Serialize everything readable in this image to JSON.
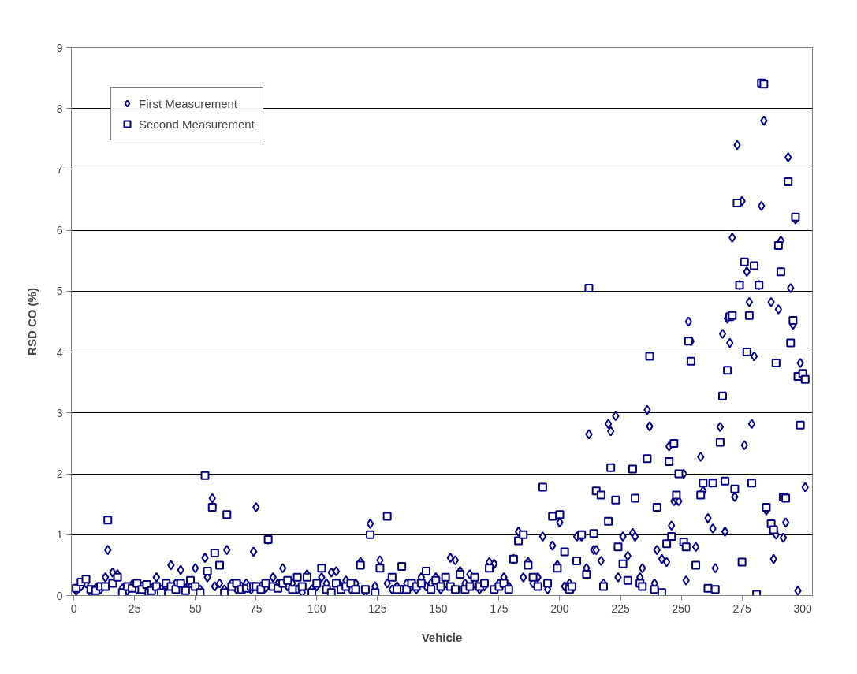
{
  "chart_data": {
    "type": "scatter",
    "xlabel": "Vehicle",
    "ylabel": "RSD CO (%)",
    "x": [
      1,
      3,
      5,
      7,
      9,
      11,
      13,
      14,
      16,
      18,
      20,
      22,
      24,
      26,
      28,
      30,
      32,
      34,
      36,
      38,
      40,
      42,
      44,
      46,
      48,
      50,
      52,
      54,
      55,
      57,
      58,
      60,
      62,
      63,
      65,
      67,
      69,
      71,
      73,
      74,
      75,
      77,
      79,
      80,
      82,
      84,
      86,
      88,
      90,
      92,
      94,
      96,
      98,
      100,
      102,
      104,
      106,
      108,
      110,
      112,
      114,
      116,
      118,
      120,
      122,
      124,
      126,
      129,
      131,
      133,
      135,
      137,
      139,
      141,
      143,
      145,
      147,
      149,
      151,
      153,
      155,
      157,
      159,
      161,
      163,
      165,
      167,
      169,
      171,
      173,
      175,
      177,
      179,
      181,
      183,
      185,
      187,
      189,
      191,
      193,
      195,
      197,
      199,
      200,
      202,
      204,
      205,
      207,
      209,
      211,
      212,
      214,
      215,
      217,
      218,
      220,
      221,
      223,
      224,
      226,
      228,
      230,
      231,
      233,
      234,
      236,
      237,
      239,
      240,
      242,
      244,
      245,
      246,
      247,
      248,
      249,
      251,
      252,
      253,
      254,
      256,
      258,
      259,
      261,
      263,
      264,
      266,
      267,
      268,
      269,
      270,
      271,
      272,
      273,
      274,
      275,
      276,
      277,
      278,
      279,
      280,
      281,
      282,
      283,
      284,
      285,
      287,
      288,
      289,
      290,
      291,
      292,
      293,
      294,
      295,
      296,
      297,
      298,
      299,
      300,
      301
    ],
    "series": [
      {
        "name": "First Measurement",
        "color": "#000080",
        "marker": "diamond",
        "values": [
          0.08,
          0.15,
          0.2,
          0.05,
          0.12,
          0.1,
          0.3,
          0.75,
          0.38,
          0.35,
          0.12,
          0.08,
          0.18,
          0.1,
          0.15,
          0.05,
          0.12,
          0.3,
          0.1,
          0.15,
          0.5,
          0.2,
          0.42,
          0.12,
          0.2,
          0.45,
          0.1,
          0.62,
          0.3,
          1.6,
          0.15,
          0.2,
          0.1,
          0.75,
          0.2,
          0.1,
          0.15,
          0.2,
          0.1,
          0.72,
          1.45,
          0.15,
          0.12,
          0.92,
          0.3,
          0.2,
          0.45,
          0.15,
          0.2,
          0.1,
          0.05,
          0.35,
          0.1,
          0.15,
          0.3,
          0.2,
          0.38,
          0.4,
          0.15,
          0.25,
          0.1,
          0.2,
          0.55,
          0.05,
          1.18,
          0.15,
          0.58,
          0.2,
          0.1,
          0.15,
          0.1,
          0.2,
          0.15,
          0.1,
          0.3,
          0.15,
          0.2,
          0.3,
          0.1,
          0.2,
          0.62,
          0.58,
          0.4,
          0.2,
          0.35,
          0.2,
          0.1,
          0.15,
          0.55,
          0.52,
          0.2,
          0.3,
          0.15,
          0.6,
          1.05,
          0.3,
          0.55,
          0.2,
          0.3,
          0.97,
          0.1,
          0.82,
          0.5,
          1.2,
          0.15,
          0.2,
          0.1,
          0.97,
          0.97,
          0.45,
          2.65,
          0.75,
          0.75,
          0.57,
          0.2,
          2.82,
          2.7,
          2.95,
          0.3,
          0.97,
          0.65,
          1.03,
          0.97,
          0.3,
          0.45,
          3.05,
          2.78,
          0.2,
          0.75,
          0.6,
          0.55,
          2.45,
          1.15,
          1.55,
          1.58,
          1.55,
          2.0,
          0.25,
          4.5,
          4.18,
          0.8,
          2.28,
          1.72,
          1.27,
          1.1,
          0.45,
          2.77,
          4.3,
          1.05,
          4.55,
          4.15,
          5.88,
          1.62,
          7.4,
          5.1,
          6.48,
          2.47,
          5.32,
          4.82,
          2.82,
          3.93,
          null,
          5.1,
          6.4,
          7.8,
          1.4,
          4.82,
          0.6,
          1.0,
          4.7,
          5.83,
          0.95,
          1.2,
          7.2,
          5.05,
          4.45,
          6.18,
          0.08,
          3.82,
          null,
          1.78
        ]
      },
      {
        "name": "Second Measurement",
        "color": "#000080",
        "marker": "square",
        "values": [
          0.12,
          0.22,
          0.27,
          0.1,
          0.08,
          0.15,
          0.15,
          1.24,
          0.2,
          0.3,
          0.05,
          0.15,
          0.12,
          0.2,
          0.1,
          0.18,
          0.08,
          0.15,
          0.05,
          0.2,
          0.15,
          0.1,
          0.2,
          0.08,
          0.25,
          0.15,
          0.05,
          1.97,
          0.4,
          1.45,
          0.7,
          0.5,
          0.05,
          1.33,
          0.15,
          0.2,
          0.1,
          0.12,
          0.15,
          0.15,
          0.15,
          0.1,
          0.2,
          0.92,
          0.15,
          0.12,
          0.2,
          0.25,
          0.1,
          0.3,
          0.15,
          0.3,
          0.05,
          0.2,
          0.45,
          0.1,
          0.05,
          0.2,
          0.1,
          0.15,
          0.2,
          0.1,
          0.5,
          0.1,
          1.0,
          0.05,
          0.45,
          1.3,
          0.3,
          0.1,
          0.48,
          0.1,
          0.2,
          0.15,
          0.2,
          0.4,
          0.1,
          0.25,
          0.15,
          0.3,
          0.15,
          0.1,
          0.35,
          0.1,
          0.15,
          0.3,
          0.15,
          0.2,
          0.45,
          0.1,
          0.15,
          0.2,
          0.1,
          0.6,
          0.9,
          1.0,
          0.5,
          0.3,
          0.15,
          1.78,
          0.2,
          1.3,
          0.45,
          1.33,
          0.72,
          0.1,
          0.15,
          0.57,
          1.0,
          0.35,
          5.05,
          1.02,
          1.72,
          1.65,
          0.15,
          1.22,
          2.1,
          1.57,
          0.8,
          0.52,
          0.25,
          2.08,
          1.6,
          0.2,
          0.15,
          2.25,
          3.93,
          0.1,
          1.45,
          0.05,
          0.85,
          2.2,
          0.97,
          2.5,
          1.65,
          2.0,
          0.88,
          0.8,
          4.18,
          3.85,
          0.5,
          1.65,
          1.85,
          0.12,
          1.85,
          0.1,
          2.52,
          3.28,
          1.88,
          3.7,
          4.58,
          4.6,
          1.75,
          6.45,
          5.1,
          0.55,
          5.48,
          4.0,
          4.6,
          1.85,
          5.42,
          0.02,
          5.1,
          8.42,
          8.4,
          1.45,
          1.18,
          1.08,
          3.82,
          5.75,
          5.32,
          1.62,
          1.6,
          6.8,
          4.15,
          4.52,
          6.22,
          3.6,
          2.8,
          3.65,
          3.55
        ]
      }
    ],
    "xlim": [
      -1,
      304
    ],
    "xticks": [
      0,
      25,
      50,
      75,
      100,
      125,
      150,
      175,
      200,
      225,
      250,
      275,
      300
    ],
    "ylim": [
      0,
      9
    ],
    "yticks": [
      0,
      1,
      2,
      3,
      4,
      5,
      6,
      7,
      8,
      9
    ],
    "grid": "y",
    "legend": "top left"
  }
}
